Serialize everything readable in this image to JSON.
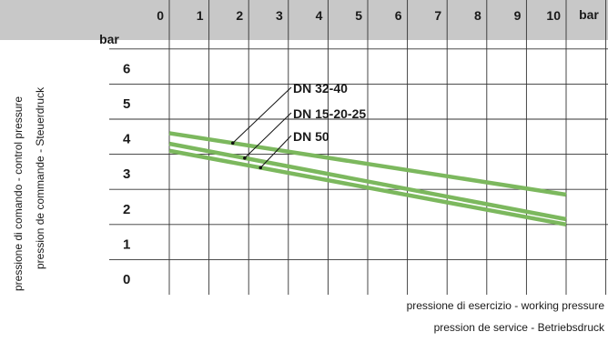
{
  "chart_data": {
    "type": "line",
    "x_unit": "bar",
    "y_unit": "bar",
    "x_ticks": [
      "0",
      "1",
      "2",
      "3",
      "4",
      "5",
      "6",
      "7",
      "8",
      "9",
      "10"
    ],
    "y_ticks": [
      "0",
      "1",
      "2",
      "3",
      "4",
      "5",
      "6"
    ],
    "xlim": [
      0,
      10
    ],
    "ylim": [
      0,
      7
    ],
    "xlabel_lines": [
      "pressione di esercizio - working pressure",
      "pression de service - Betriebsdruck"
    ],
    "ylabel_lines": [
      "pressione di comando - control pressure",
      "pression de commande - Steuerdruck"
    ],
    "grid": true,
    "line_color": "#7cb85e",
    "header_color": "#c8c8c8",
    "series": [
      {
        "name": "DN 32-40",
        "x": [
          0,
          10
        ],
        "y": [
          4.6,
          2.85
        ]
      },
      {
        "name": "DN 15-20-25",
        "x": [
          0,
          10
        ],
        "y": [
          4.3,
          2.15
        ]
      },
      {
        "name": "DN 50",
        "x": [
          0,
          10
        ],
        "y": [
          4.1,
          2.0
        ]
      }
    ]
  }
}
